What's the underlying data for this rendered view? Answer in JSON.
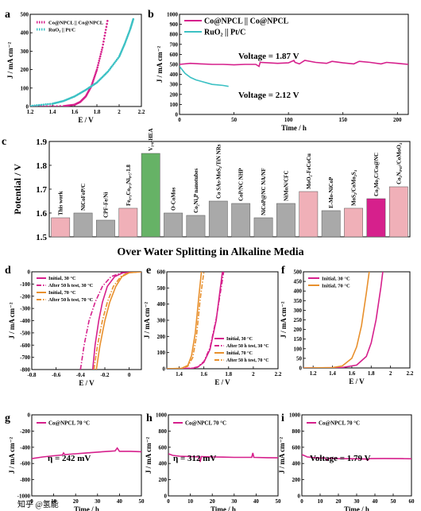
{
  "figure_title": "Over Water Splitting in Alkaline Media",
  "watermark": "知乎 @氢能",
  "colors": {
    "magenta": "#d6208c",
    "cyan": "#3cc1c4",
    "orange": "#e8902d",
    "pink_bar": "#f0b0b8",
    "gray_bar": "#a9a9a9",
    "green_bar": "#66b266"
  },
  "chart_data": [
    {
      "panel": "a",
      "type": "line",
      "xlabel": "E / V",
      "ylabel": "J / mA cm⁻²",
      "xlim": [
        1.2,
        2.2
      ],
      "ylim": [
        0,
        500
      ],
      "xticks": [
        1.2,
        1.4,
        1.6,
        1.8,
        2.0,
        2.2
      ],
      "yticks": [
        0,
        100,
        200,
        300,
        400,
        500
      ],
      "legend": "top-left",
      "series": [
        {
          "name": "Co@NPCL || Co@NPCL",
          "color": "#d6208c",
          "style": "dots",
          "points": [
            [
              1.2,
              0
            ],
            [
              1.5,
              2
            ],
            [
              1.6,
              10
            ],
            [
              1.65,
              25
            ],
            [
              1.7,
              55
            ],
            [
              1.75,
              110
            ],
            [
              1.8,
              200
            ],
            [
              1.85,
              320
            ],
            [
              1.9,
              480
            ]
          ]
        },
        {
          "name": "RuO₂ || Pt/C",
          "color": "#3cc1c4",
          "style": "dots",
          "points": [
            [
              1.2,
              3
            ],
            [
              1.4,
              15
            ],
            [
              1.5,
              30
            ],
            [
              1.6,
              55
            ],
            [
              1.7,
              90
            ],
            [
              1.8,
              130
            ],
            [
              1.9,
              190
            ],
            [
              2.0,
              270
            ],
            [
              2.05,
              340
            ],
            [
              2.1,
              420
            ],
            [
              2.13,
              480
            ]
          ]
        }
      ]
    },
    {
      "panel": "b",
      "type": "line",
      "xlabel": "Time / h",
      "ylabel": "J / mA cm⁻²",
      "xlim": [
        0,
        210
      ],
      "ylim": [
        0,
        1000
      ],
      "xticks": [
        0,
        50,
        100,
        150,
        200
      ],
      "yticks": [
        0,
        100,
        200,
        300,
        400,
        500,
        600,
        700,
        800,
        900,
        1000
      ],
      "legend": "top-left",
      "annotations": [
        "Voltage = 1.87 V",
        "Voltage = 2.12 V"
      ],
      "series": [
        {
          "name": "Co@NPCL || Co@NPCL",
          "color": "#d6208c",
          "points": [
            [
              0,
              500
            ],
            [
              10,
              510
            ],
            [
              20,
              505
            ],
            [
              30,
              500
            ],
            [
              40,
              500
            ],
            [
              50,
              495
            ],
            [
              60,
              500
            ],
            [
              70,
              500
            ],
            [
              73,
              480
            ],
            [
              74,
              520
            ],
            [
              90,
              510
            ],
            [
              100,
              515
            ],
            [
              105,
              540
            ],
            [
              106,
              520
            ],
            [
              110,
              505
            ],
            [
              115,
              540
            ],
            [
              125,
              520
            ],
            [
              135,
              510
            ],
            [
              140,
              530
            ],
            [
              150,
              515
            ],
            [
              160,
              505
            ],
            [
              165,
              530
            ],
            [
              175,
              520
            ],
            [
              185,
              505
            ],
            [
              190,
              520
            ],
            [
              200,
              510
            ],
            [
              210,
              500
            ]
          ]
        },
        {
          "name": "RuO₂ || Pt/C",
          "color": "#3cc1c4",
          "points": [
            [
              0,
              480
            ],
            [
              5,
              410
            ],
            [
              10,
              370
            ],
            [
              15,
              345
            ],
            [
              20,
              330
            ],
            [
              25,
              315
            ],
            [
              30,
              300
            ],
            [
              35,
              295
            ],
            [
              40,
              290
            ],
            [
              45,
              280
            ]
          ]
        }
      ]
    },
    {
      "panel": "c",
      "type": "bar",
      "ylabel": "Potential / V",
      "ylim": [
        1.5,
        1.9
      ],
      "yticks": [
        1.5,
        1.6,
        1.7,
        1.8,
        1.9
      ],
      "categories": [
        "This work",
        "NiCoFeP/C",
        "CPF-Fe/Ni",
        "Fe₀.₁Co₀.₃Ni₀.₅-1.8",
        "V₁.₀-HEA",
        "O-CoMos",
        "Co₂Ni₄P nanotubes",
        "Co SAs-MoS₂/TiN NRs",
        "CoP/NC NHP",
        "NiCoP@NC NA/NF",
        "NiMoN/CFC",
        "MoO₂-FeCoCu",
        "E-Mo-NiCoP",
        "MoS₂/CoMo₂S₄",
        "Co₃Mo₃C/Co@NC",
        "Co₂N₀.₆₇/CoMoO₄"
      ],
      "values": [
        1.58,
        1.6,
        1.57,
        1.62,
        1.85,
        1.6,
        1.59,
        1.65,
        1.64,
        1.58,
        1.64,
        1.69,
        1.61,
        1.62,
        1.66,
        1.71
      ],
      "colors": [
        "#f0b0b8",
        "#a9a9a9",
        "#a9a9a9",
        "#f0b0b8",
        "#66b266",
        "#a9a9a9",
        "#a9a9a9",
        "#a9a9a9",
        "#a9a9a9",
        "#a9a9a9",
        "#a9a9a9",
        "#f0b0b8",
        "#a9a9a9",
        "#f0b0b8",
        "#d6208c",
        "#f0b0b8"
      ]
    },
    {
      "panel": "d",
      "type": "line",
      "xlabel": "E / V",
      "ylabel": "J / mA cm⁻²",
      "xlim": [
        -0.8,
        0.1
      ],
      "ylim": [
        -800,
        0
      ],
      "xticks": [
        -0.8,
        -0.6,
        -0.4,
        -0.2,
        0.0
      ],
      "yticks": [
        -800,
        -700,
        -600,
        -500,
        -400,
        -300,
        -200,
        -100,
        0
      ],
      "legend": "top-left",
      "series": [
        {
          "name": "Initial, 30 °C",
          "color": "#d6208c",
          "style": "solid",
          "points": [
            [
              -0.3,
              -800
            ],
            [
              -0.28,
              -600
            ],
            [
              -0.25,
              -400
            ],
            [
              -0.22,
              -250
            ],
            [
              -0.18,
              -120
            ],
            [
              -0.12,
              -40
            ],
            [
              -0.05,
              -8
            ],
            [
              0.1,
              0
            ]
          ]
        },
        {
          "name": "After 50 h test, 30 °C",
          "color": "#d6208c",
          "style": "dashdot",
          "points": [
            [
              -0.4,
              -800
            ],
            [
              -0.37,
              -600
            ],
            [
              -0.33,
              -400
            ],
            [
              -0.28,
              -250
            ],
            [
              -0.22,
              -120
            ],
            [
              -0.15,
              -40
            ],
            [
              -0.06,
              -8
            ],
            [
              0.1,
              0
            ]
          ]
        },
        {
          "name": "Initial, 70 °C",
          "color": "#e8902d",
          "style": "solid",
          "points": [
            [
              -0.27,
              -800
            ],
            [
              -0.24,
              -600
            ],
            [
              -0.2,
              -400
            ],
            [
              -0.16,
              -250
            ],
            [
              -0.11,
              -120
            ],
            [
              -0.06,
              -40
            ],
            [
              0.0,
              -8
            ],
            [
              0.1,
              0
            ]
          ]
        },
        {
          "name": "After 50 h test, 70 °C",
          "color": "#e8902d",
          "style": "dashdot",
          "points": [
            [
              -0.29,
              -800
            ],
            [
              -0.26,
              -600
            ],
            [
              -0.22,
              -400
            ],
            [
              -0.18,
              -250
            ],
            [
              -0.13,
              -120
            ],
            [
              -0.07,
              -40
            ],
            [
              -0.01,
              -8
            ],
            [
              0.1,
              0
            ]
          ]
        }
      ]
    },
    {
      "panel": "e",
      "type": "line",
      "xlabel": "E / V",
      "ylabel": "J / mA cm⁻²",
      "xlim": [
        1.3,
        2.2
      ],
      "ylim": [
        0,
        600
      ],
      "xticks": [
        1.4,
        1.6,
        1.8,
        2.0,
        2.2
      ],
      "yticks": [
        0,
        100,
        200,
        300,
        400,
        500,
        600
      ],
      "legend": "bottom-right",
      "series": [
        {
          "name": "Initial, 30 °C",
          "color": "#d6208c",
          "style": "solid",
          "points": [
            [
              1.3,
              0
            ],
            [
              1.5,
              2
            ],
            [
              1.55,
              10
            ],
            [
              1.6,
              40
            ],
            [
              1.65,
              120
            ],
            [
              1.7,
              300
            ],
            [
              1.75,
              600
            ]
          ]
        },
        {
          "name": "After 50 h test, 30 °C",
          "color": "#d6208c",
          "style": "dashdot",
          "points": [
            [
              1.3,
              0
            ],
            [
              1.5,
              3
            ],
            [
              1.55,
              12
            ],
            [
              1.6,
              45
            ],
            [
              1.65,
              130
            ],
            [
              1.7,
              310
            ],
            [
              1.76,
              600
            ]
          ]
        },
        {
          "name": "Initial, 70 °C",
          "color": "#e8902d",
          "style": "solid",
          "points": [
            [
              1.3,
              0
            ],
            [
              1.42,
              3
            ],
            [
              1.47,
              20
            ],
            [
              1.5,
              80
            ],
            [
              1.53,
              220
            ],
            [
              1.56,
              450
            ],
            [
              1.58,
              600
            ]
          ]
        },
        {
          "name": "After 50 h test, 70 °C",
          "color": "#e8902d",
          "style": "dashdot",
          "points": [
            [
              1.3,
              0
            ],
            [
              1.42,
              2
            ],
            [
              1.47,
              15
            ],
            [
              1.51,
              70
            ],
            [
              1.54,
              200
            ],
            [
              1.57,
              430
            ],
            [
              1.6,
              600
            ]
          ]
        }
      ]
    },
    {
      "panel": "f",
      "type": "line",
      "xlabel": "E / V",
      "ylabel": "J / mA cm⁻²",
      "xlim": [
        1.1,
        2.2
      ],
      "ylim": [
        0,
        500
      ],
      "xticks": [
        1.2,
        1.4,
        1.6,
        1.8,
        2.0,
        2.2
      ],
      "yticks": [
        0,
        50,
        100,
        150,
        200,
        250,
        300,
        350,
        400,
        450,
        500
      ],
      "legend": "top-left",
      "series": [
        {
          "name": "Initial, 30 °C",
          "color": "#d6208c",
          "style": "solid",
          "points": [
            [
              1.1,
              0
            ],
            [
              1.5,
              2
            ],
            [
              1.65,
              15
            ],
            [
              1.75,
              60
            ],
            [
              1.8,
              130
            ],
            [
              1.85,
              250
            ],
            [
              1.9,
              420
            ],
            [
              1.92,
              500
            ]
          ]
        },
        {
          "name": "Initial, 70 °C",
          "color": "#e8902d",
          "style": "solid",
          "points": [
            [
              1.1,
              0
            ],
            [
              1.4,
              2
            ],
            [
              1.5,
              10
            ],
            [
              1.6,
              50
            ],
            [
              1.65,
              110
            ],
            [
              1.7,
              220
            ],
            [
              1.75,
              390
            ],
            [
              1.78,
              500
            ]
          ]
        }
      ]
    },
    {
      "panel": "g",
      "type": "line",
      "xlabel": "Time / h",
      "ylabel": "J / mA cm⁻²",
      "xlim": [
        0,
        50
      ],
      "ylim": [
        -1000,
        0
      ],
      "xticks": [
        0,
        10,
        20,
        30,
        40,
        50
      ],
      "yticks": [
        -1000,
        -800,
        -600,
        -400,
        -200,
        0
      ],
      "legend": "top-left",
      "annotations": [
        "η = 242 mV"
      ],
      "series": [
        {
          "name": "Co@NPCL 70 °C",
          "color": "#d6208c",
          "points": [
            [
              0,
              -540
            ],
            [
              5,
              -520
            ],
            [
              10,
              -505
            ],
            [
              14,
              -495
            ],
            [
              14.5,
              -470
            ],
            [
              15,
              -490
            ],
            [
              20,
              -480
            ],
            [
              25,
              -470
            ],
            [
              30,
              -460
            ],
            [
              35,
              -450
            ],
            [
              38,
              -445
            ],
            [
              39,
              -410
            ],
            [
              40,
              -450
            ],
            [
              45,
              -450
            ],
            [
              50,
              -455
            ]
          ]
        }
      ]
    },
    {
      "panel": "h",
      "type": "line",
      "xlabel": "Time / h",
      "ylabel": "J / mA cm⁻²",
      "xlim": [
        0,
        50
      ],
      "ylim": [
        0,
        1000
      ],
      "xticks": [
        0,
        10,
        20,
        30,
        40,
        50
      ],
      "yticks": [
        0,
        200,
        400,
        600,
        800,
        1000
      ],
      "legend": "top-left",
      "annotations": [
        "η = 312 mV"
      ],
      "series": [
        {
          "name": "Co@NPCL 70 °C",
          "color": "#d6208c",
          "points": [
            [
              0,
              520
            ],
            [
              2,
              500
            ],
            [
              5,
              490
            ],
            [
              10,
              485
            ],
            [
              14,
              480
            ],
            [
              14.5,
              420
            ],
            [
              15,
              485
            ],
            [
              20,
              480
            ],
            [
              25,
              478
            ],
            [
              30,
              475
            ],
            [
              38,
              475
            ],
            [
              38.5,
              530
            ],
            [
              39,
              475
            ],
            [
              45,
              472
            ],
            [
              50,
              470
            ]
          ]
        }
      ]
    },
    {
      "panel": "i",
      "type": "line",
      "xlabel": "Time / h",
      "ylabel": "J / mA cm⁻²",
      "xlim": [
        0,
        60
      ],
      "ylim": [
        0,
        1000
      ],
      "xticks": [
        0,
        10,
        20,
        30,
        40,
        50,
        60
      ],
      "yticks": [
        0,
        200,
        400,
        600,
        800,
        1000
      ],
      "legend": "top-left",
      "annotations": [
        "Voltage = 1.79 V"
      ],
      "series": [
        {
          "name": "Co@NPCL 70 °C",
          "color": "#d6208c",
          "points": [
            [
              0,
              510
            ],
            [
              3,
              480
            ],
            [
              8,
              470
            ],
            [
              13,
              465
            ],
            [
              14,
              440
            ],
            [
              15,
              465
            ],
            [
              20,
              460
            ],
            [
              30,
              458
            ],
            [
              35,
              455
            ],
            [
              36,
              440
            ],
            [
              37,
              460
            ],
            [
              45,
              462
            ],
            [
              55,
              460
            ],
            [
              60,
              458
            ]
          ]
        }
      ]
    }
  ]
}
